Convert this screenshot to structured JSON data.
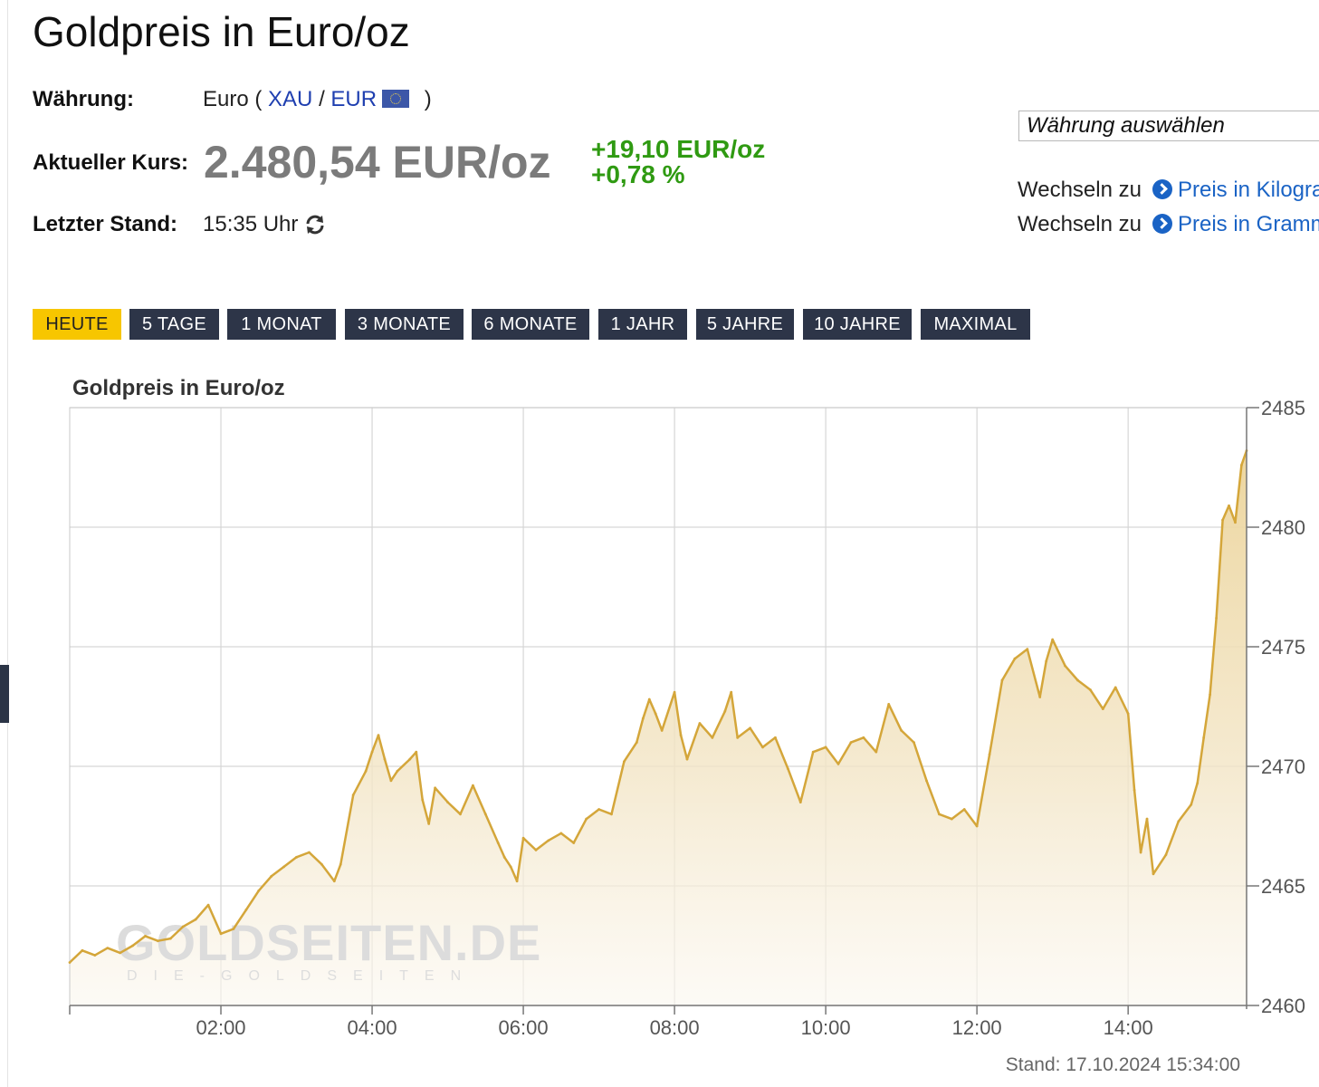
{
  "page_title": "Goldpreis in Euro/oz",
  "info": {
    "currency_label": "Währung:",
    "currency_prefix": "Euro (",
    "currency_link_1": "XAU",
    "currency_sep": "/",
    "currency_link_2": "EUR",
    "currency_suffix": ")",
    "rate_label": "Aktueller Kurs:",
    "rate_value": "2.480,54 EUR/oz",
    "change_abs": "+19,10 EUR/oz",
    "change_pct": "+0,78 %",
    "updated_label": "Letzter Stand:",
    "updated_value": "15:35 Uhr"
  },
  "currency_select": {
    "value": "Währung auswählen"
  },
  "switch_links": [
    {
      "prefix": "Wechseln zu",
      "label": "Preis in Kilogramm"
    },
    {
      "prefix": "Wechseln zu",
      "label": "Preis in Gramm"
    }
  ],
  "tabs": [
    {
      "label": "HEUTE",
      "active": true
    },
    {
      "label": "5 TAGE",
      "active": false
    },
    {
      "label": "1 MONAT",
      "active": false
    },
    {
      "label": "3 MONATE",
      "active": false
    },
    {
      "label": "6 MONATE",
      "active": false
    },
    {
      "label": "1 JAHR",
      "active": false
    },
    {
      "label": "5 JAHRE",
      "active": false
    },
    {
      "label": "10 JAHRE",
      "active": false
    },
    {
      "label": "MAXIMAL",
      "active": false
    }
  ],
  "watermark": {
    "main": "GOLDSEITEN.DE",
    "sub": "DIE-GOLDSEITEN"
  },
  "colors": {
    "accent_tab": "#f7c600",
    "tab_bg": "#2d3548",
    "line": "#d4a63a",
    "positive": "#2f9a12",
    "link": "#1f3fb0"
  },
  "chart_data": {
    "type": "area",
    "title": "Goldpreis in Euro/oz",
    "xlabel": "",
    "ylabel": "",
    "x_ticks": [
      "02:00",
      "04:00",
      "06:00",
      "08:00",
      "10:00",
      "12:00",
      "14:00"
    ],
    "y_ticks": [
      "2460",
      "2465",
      "2470",
      "2475",
      "2480",
      "2485"
    ],
    "xlim": [
      "00:00",
      "15:34"
    ],
    "ylim": [
      2460,
      2485
    ],
    "grid": true,
    "stand": "Stand: 17.10.2024 15:34:00",
    "x": [
      "00:00",
      "00:10",
      "00:20",
      "00:30",
      "00:40",
      "00:50",
      "01:00",
      "01:10",
      "01:20",
      "01:30",
      "01:40",
      "01:50",
      "02:00",
      "02:10",
      "02:20",
      "02:30",
      "02:40",
      "02:50",
      "03:00",
      "03:10",
      "03:20",
      "03:30",
      "03:35",
      "03:45",
      "03:55",
      "04:00",
      "04:05",
      "04:10",
      "04:15",
      "04:20",
      "04:30",
      "04:35",
      "04:40",
      "04:45",
      "04:50",
      "05:00",
      "05:10",
      "05:20",
      "05:30",
      "05:40",
      "05:45",
      "05:50",
      "05:55",
      "06:00",
      "06:10",
      "06:20",
      "06:30",
      "06:40",
      "06:50",
      "07:00",
      "07:10",
      "07:20",
      "07:30",
      "07:35",
      "07:40",
      "07:45",
      "07:50",
      "08:00",
      "08:05",
      "08:10",
      "08:20",
      "08:30",
      "08:40",
      "08:45",
      "08:50",
      "09:00",
      "09:10",
      "09:20",
      "09:30",
      "09:40",
      "09:50",
      "10:00",
      "10:10",
      "10:20",
      "10:30",
      "10:40",
      "10:50",
      "11:00",
      "11:10",
      "11:20",
      "11:30",
      "11:40",
      "11:50",
      "12:00",
      "12:10",
      "12:20",
      "12:30",
      "12:40",
      "12:50",
      "12:55",
      "13:00",
      "13:10",
      "13:20",
      "13:30",
      "13:40",
      "13:50",
      "14:00",
      "14:05",
      "14:10",
      "14:15",
      "14:20",
      "14:30",
      "14:40",
      "14:50",
      "14:55",
      "15:00",
      "15:05",
      "15:10",
      "15:15",
      "15:20",
      "15:25",
      "15:30",
      "15:34"
    ],
    "values": [
      2461.8,
      2462.3,
      2462.1,
      2462.4,
      2462.2,
      2462.5,
      2462.9,
      2462.7,
      2462.8,
      2463.3,
      2463.6,
      2464.2,
      2463.0,
      2463.2,
      2464.0,
      2464.8,
      2465.4,
      2465.8,
      2466.2,
      2466.4,
      2465.9,
      2465.2,
      2465.9,
      2468.8,
      2469.8,
      2470.6,
      2471.3,
      2470.3,
      2469.4,
      2469.8,
      2470.3,
      2470.6,
      2468.6,
      2467.6,
      2469.1,
      2468.5,
      2468.0,
      2469.2,
      2468.0,
      2466.8,
      2466.2,
      2465.8,
      2465.2,
      2467.0,
      2466.5,
      2466.9,
      2467.2,
      2466.8,
      2467.8,
      2468.2,
      2468.0,
      2470.2,
      2471.0,
      2472.0,
      2472.8,
      2472.2,
      2471.5,
      2473.1,
      2471.3,
      2470.3,
      2471.8,
      2471.2,
      2472.3,
      2473.1,
      2471.2,
      2471.6,
      2470.8,
      2471.2,
      2469.9,
      2468.5,
      2470.6,
      2470.8,
      2470.1,
      2471.0,
      2471.2,
      2470.6,
      2472.6,
      2471.5,
      2471.0,
      2469.4,
      2468.0,
      2467.8,
      2468.2,
      2467.5,
      2470.5,
      2473.6,
      2474.5,
      2474.9,
      2472.9,
      2474.4,
      2475.3,
      2474.2,
      2473.6,
      2473.2,
      2472.4,
      2473.3,
      2472.2,
      2469.0,
      2466.4,
      2467.8,
      2465.5,
      2466.3,
      2467.7,
      2468.4,
      2469.3,
      2471.2,
      2473.0,
      2476.2,
      2480.3,
      2480.9,
      2480.2,
      2482.6,
      2483.2
    ]
  }
}
